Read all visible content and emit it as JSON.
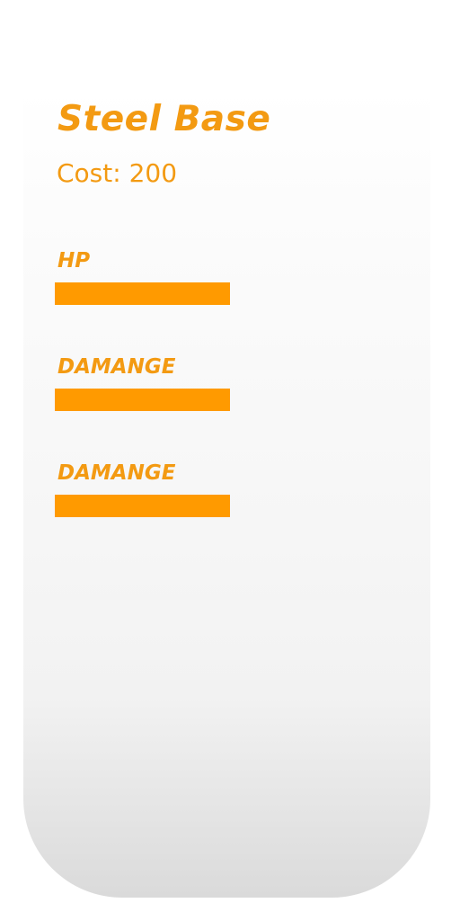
{
  "card": {
    "title": "Steel Base",
    "cost": "Cost: 200",
    "accent_color": "#f39a12",
    "bar_color": "#ff9a00",
    "stats": [
      {
        "label": "HP",
        "level": 1.0
      },
      {
        "label": "DAMANGE",
        "level": 1.0
      },
      {
        "label": "DAMANGE",
        "level": 1.0
      }
    ]
  }
}
